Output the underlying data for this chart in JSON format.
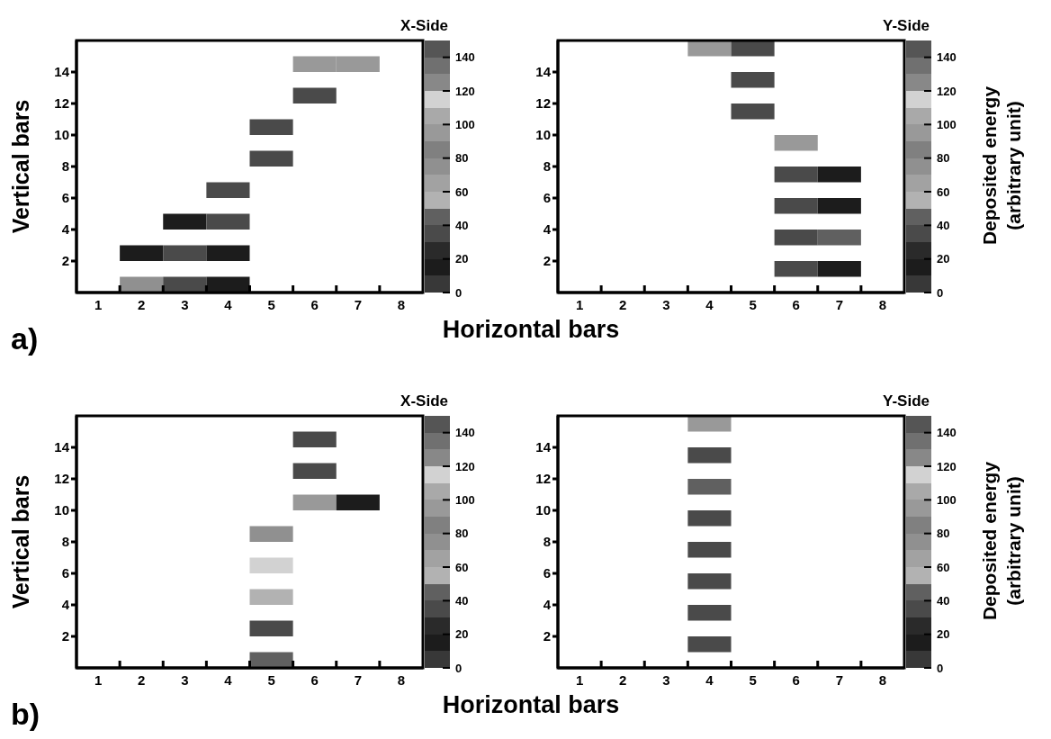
{
  "chart_data": [
    {
      "type": "heatmap",
      "title": "X-Side",
      "ylabel": "Vertical bars",
      "xlabel": "Horizontal bars",
      "annotations": [
        "a)"
      ],
      "categories": [
        "1",
        "2",
        "3",
        "4",
        "5",
        "6",
        "7",
        "8"
      ],
      "ylim": [
        0,
        16
      ],
      "yticks": [
        2,
        4,
        6,
        8,
        10,
        12,
        14
      ],
      "clim": [
        0,
        150
      ],
      "cticks": [
        0,
        20,
        40,
        60,
        80,
        100,
        120,
        140
      ],
      "colors": [
        "#383838",
        "#1c1c1c",
        "#2a2a2a",
        "#4a4a4a",
        "#606060",
        "#b2b2b2",
        "#a2a2a2",
        "#909090",
        "#808080",
        "#999999",
        "#a9a9a9",
        "#d2d2d2",
        "#888888",
        "#707070",
        "#555555"
      ],
      "cells": [
        [
          null,
          null,
          null,
          null,
          null,
          95,
          95,
          null
        ],
        [
          null,
          null,
          null,
          null,
          null,
          35,
          null,
          null
        ],
        [
          null,
          null,
          null,
          null,
          35,
          null,
          null,
          null
        ],
        [
          null,
          null,
          null,
          null,
          35,
          null,
          null,
          null
        ],
        [
          null,
          null,
          null,
          35,
          null,
          null,
          null,
          null
        ],
        [
          null,
          null,
          15,
          35,
          null,
          null,
          null,
          null
        ],
        [
          null,
          15,
          35,
          15,
          null,
          null,
          null,
          null
        ],
        [
          null,
          75,
          35,
          15,
          null,
          null,
          null,
          null
        ]
      ]
    },
    {
      "type": "heatmap",
      "title": "Y-Side",
      "clabel": "Deposited energy (arbitrary unit)",
      "categories": [
        "1",
        "2",
        "3",
        "4",
        "5",
        "6",
        "7",
        "8"
      ],
      "ylim": [
        0,
        16
      ],
      "yticks": [
        2,
        4,
        6,
        8,
        10,
        12,
        14
      ],
      "clim": [
        0,
        150
      ],
      "cticks": [
        0,
        20,
        40,
        60,
        80,
        100,
        120,
        140
      ],
      "colors": [
        "#383838",
        "#1c1c1c",
        "#2a2a2a",
        "#4a4a4a",
        "#606060",
        "#b2b2b2",
        "#a2a2a2",
        "#909090",
        "#808080",
        "#999999",
        "#a9a9a9",
        "#d2d2d2",
        "#888888",
        "#707070",
        "#555555"
      ],
      "cells": [
        [
          null,
          null,
          null,
          95,
          35,
          null,
          null,
          null
        ],
        [
          null,
          null,
          null,
          null,
          35,
          null,
          null,
          null
        ],
        [
          null,
          null,
          null,
          null,
          35,
          null,
          null,
          null
        ],
        [
          null,
          null,
          null,
          null,
          null,
          95,
          null,
          null
        ],
        [
          null,
          null,
          null,
          null,
          null,
          35,
          15,
          null
        ],
        [
          null,
          null,
          null,
          null,
          null,
          35,
          15,
          null
        ],
        [
          null,
          null,
          null,
          null,
          null,
          35,
          45,
          null
        ],
        [
          null,
          null,
          null,
          null,
          null,
          35,
          15,
          null
        ]
      ]
    },
    {
      "type": "heatmap",
      "title": "X-Side",
      "ylabel": "Vertical bars",
      "xlabel": "Horizontal bars",
      "annotations": [
        "b)"
      ],
      "categories": [
        "1",
        "2",
        "3",
        "4",
        "5",
        "6",
        "7",
        "8"
      ],
      "ylim": [
        0,
        16
      ],
      "yticks": [
        2,
        4,
        6,
        8,
        10,
        12,
        14
      ],
      "clim": [
        0,
        150
      ],
      "cticks": [
        0,
        20,
        40,
        60,
        80,
        100,
        120,
        140
      ],
      "colors": [
        "#383838",
        "#1c1c1c",
        "#2a2a2a",
        "#4a4a4a",
        "#606060",
        "#b2b2b2",
        "#a2a2a2",
        "#909090",
        "#808080",
        "#999999",
        "#a9a9a9",
        "#d2d2d2",
        "#888888",
        "#707070",
        "#555555"
      ],
      "cells": [
        [
          null,
          null,
          null,
          null,
          null,
          35,
          null,
          null
        ],
        [
          null,
          null,
          null,
          null,
          null,
          35,
          null,
          null
        ],
        [
          null,
          null,
          null,
          null,
          null,
          95,
          15,
          null
        ],
        [
          null,
          null,
          null,
          null,
          75,
          null,
          null,
          null
        ],
        [
          null,
          null,
          null,
          null,
          115,
          null,
          null,
          null
        ],
        [
          null,
          null,
          null,
          null,
          55,
          null,
          null,
          null
        ],
        [
          null,
          null,
          null,
          null,
          35,
          null,
          null,
          null
        ],
        [
          null,
          null,
          null,
          null,
          45,
          null,
          null,
          null
        ]
      ]
    },
    {
      "type": "heatmap",
      "title": "Y-Side",
      "clabel": "Deposited energy (arbitrary unit)",
      "categories": [
        "1",
        "2",
        "3",
        "4",
        "5",
        "6",
        "7",
        "8"
      ],
      "ylim": [
        0,
        16
      ],
      "yticks": [
        2,
        4,
        6,
        8,
        10,
        12,
        14
      ],
      "clim": [
        0,
        150
      ],
      "cticks": [
        0,
        20,
        40,
        60,
        80,
        100,
        120,
        140
      ],
      "colors": [
        "#383838",
        "#1c1c1c",
        "#2a2a2a",
        "#4a4a4a",
        "#606060",
        "#b2b2b2",
        "#a2a2a2",
        "#909090",
        "#808080",
        "#999999",
        "#a9a9a9",
        "#d2d2d2",
        "#888888",
        "#707070",
        "#555555"
      ],
      "cells": [
        [
          null,
          null,
          null,
          95,
          null,
          null,
          null,
          null
        ],
        [
          null,
          null,
          null,
          35,
          null,
          null,
          null,
          null
        ],
        [
          null,
          null,
          null,
          45,
          null,
          null,
          null,
          null
        ],
        [
          null,
          null,
          null,
          35,
          null,
          null,
          null,
          null
        ],
        [
          null,
          null,
          null,
          35,
          null,
          null,
          null,
          null
        ],
        [
          null,
          null,
          null,
          35,
          null,
          null,
          null,
          null
        ],
        [
          null,
          null,
          null,
          35,
          null,
          null,
          null,
          null
        ],
        [
          null,
          null,
          null,
          35,
          null,
          null,
          null,
          null
        ]
      ]
    }
  ]
}
